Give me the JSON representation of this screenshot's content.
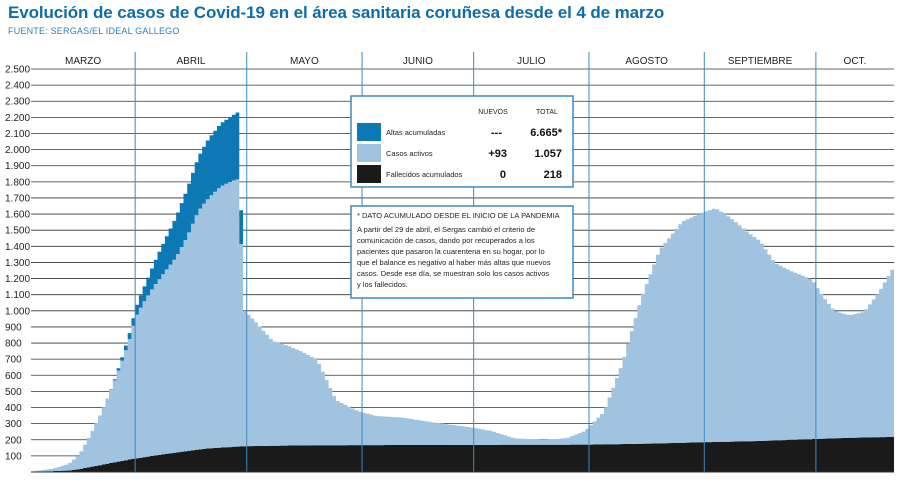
{
  "title": "Evolución de casos de Covid-19 en el área sanitaria coruñesa desde el 4 de marzo",
  "source": "FUENTE: SERGAS/EL IDEAL GALLEGO",
  "colors": {
    "title": "#0e6da8",
    "altas": "#0c79b5",
    "activos": "#a0c3e0",
    "fallecidos": "#1a1a1a",
    "month_line": "#3a8ac2",
    "grid": "#333333"
  },
  "chart_data": {
    "type": "area",
    "stacked": true,
    "ylim": [
      0,
      2500
    ],
    "y_ticks": [
      100,
      200,
      300,
      400,
      500,
      600,
      700,
      800,
      900,
      1000,
      1100,
      1200,
      1300,
      1400,
      1500,
      1600,
      1700,
      1800,
      1900,
      2000,
      2100,
      2200,
      2300,
      2400,
      2500
    ],
    "y_tick_labels": [
      "100",
      "200",
      "300",
      "400",
      "500",
      "600",
      "700",
      "800",
      "900",
      "1.000",
      "1.100",
      "1.200",
      "1.300",
      "1.400",
      "1.500",
      "1.600",
      "1.700",
      "1.800",
      "1.900",
      "2.000",
      "2.100",
      "2.200",
      "2.300",
      "2.400",
      "2.500"
    ],
    "months": [
      "MARZO",
      "ABRIL",
      "MAYO",
      "JUNIO",
      "JULIO",
      "AGOSTO",
      "SEPTIEMBRE",
      "OCT."
    ],
    "series": [
      {
        "name": "Fallecidos acumulados",
        "points": [
          [
            "03-04",
            0
          ],
          [
            "03-15",
            10
          ],
          [
            "03-22",
            40
          ],
          [
            "03-31",
            80
          ],
          [
            "04-10",
            115
          ],
          [
            "04-20",
            145
          ],
          [
            "04-30",
            160
          ],
          [
            "05-15",
            165
          ],
          [
            "06-01",
            167
          ],
          [
            "07-01",
            168
          ],
          [
            "08-01",
            170
          ],
          [
            "08-15",
            175
          ],
          [
            "09-01",
            185
          ],
          [
            "09-15",
            192
          ],
          [
            "10-01",
            205
          ],
          [
            "10-10",
            212
          ],
          [
            "10-22",
            218
          ]
        ]
      },
      {
        "name": "Casos activos",
        "points": [
          [
            "03-04",
            2
          ],
          [
            "03-10",
            15
          ],
          [
            "03-14",
            40
          ],
          [
            "03-17",
            90
          ],
          [
            "03-20",
            200
          ],
          [
            "03-23",
            330
          ],
          [
            "03-26",
            480
          ],
          [
            "03-29",
            650
          ],
          [
            "03-31",
            780
          ],
          [
            "04-01",
            870
          ],
          [
            "04-03",
            950
          ],
          [
            "04-06",
            1050
          ],
          [
            "04-09",
            1130
          ],
          [
            "04-12",
            1210
          ],
          [
            "04-15",
            1330
          ],
          [
            "04-18",
            1480
          ],
          [
            "04-21",
            1560
          ],
          [
            "04-24",
            1620
          ],
          [
            "04-27",
            1650
          ],
          [
            "04-29",
            1660
          ],
          [
            "04-30",
            850
          ],
          [
            "05-03",
            780
          ],
          [
            "05-08",
            650
          ],
          [
            "05-12",
            620
          ],
          [
            "05-16",
            580
          ],
          [
            "05-20",
            530
          ],
          [
            "05-25",
            280
          ],
          [
            "05-31",
            210
          ],
          [
            "06-05",
            180
          ],
          [
            "06-12",
            170
          ],
          [
            "06-20",
            140
          ],
          [
            "06-30",
            110
          ],
          [
            "07-06",
            85
          ],
          [
            "07-12",
            40
          ],
          [
            "07-20",
            30
          ],
          [
            "07-26",
            40
          ],
          [
            "07-31",
            85
          ],
          [
            "08-05",
            200
          ],
          [
            "08-10",
            500
          ],
          [
            "08-15",
            900
          ],
          [
            "08-20",
            1200
          ],
          [
            "08-26",
            1370
          ],
          [
            "08-31",
            1420
          ],
          [
            "09-04",
            1450
          ],
          [
            "09-08",
            1390
          ],
          [
            "09-12",
            1310
          ],
          [
            "09-16",
            1240
          ],
          [
            "09-20",
            1100
          ],
          [
            "09-25",
            1040
          ],
          [
            "09-30",
            990
          ],
          [
            "10-03",
            880
          ],
          [
            "10-06",
            790
          ],
          [
            "10-10",
            760
          ],
          [
            "10-14",
            780
          ],
          [
            "10-18",
            900
          ],
          [
            "10-22",
            1057
          ]
        ]
      },
      {
        "name": "Altas acumuladas",
        "points": [
          [
            "03-04",
            0
          ],
          [
            "03-25",
            0
          ],
          [
            "03-27",
            10
          ],
          [
            "03-31",
            40
          ],
          [
            "04-04",
            100
          ],
          [
            "04-08",
            180
          ],
          [
            "04-12",
            250
          ],
          [
            "04-16",
            310
          ],
          [
            "04-20",
            360
          ],
          [
            "04-24",
            390
          ],
          [
            "04-28",
            410
          ],
          [
            "04-29",
            420
          ],
          [
            "04-30",
            0
          ],
          [
            "10-22",
            0
          ]
        ]
      }
    ],
    "legend": {
      "headers": [
        "NUEVOS",
        "TOTAL"
      ],
      "rows": [
        {
          "label": "Altas acumuladas",
          "nuevos": "---",
          "total": "6.665*"
        },
        {
          "label": "Casos activos",
          "nuevos": "+93",
          "total": "1.057"
        },
        {
          "label": "Fallecidos acumulados",
          "nuevos": "0",
          "total": "218"
        }
      ]
    },
    "note": {
      "heading": "* DATO ACUMULADO DESDE EL INICIO DE LA PANDEMIA",
      "lines": [
        "A partir del 29 de abril, el Sergas cambió el criterio de",
        "comunicación de casos, dando por recuperados a los",
        "pacientes que pasaron la cuarentena en su hogar, por lo",
        "que el balance es negativo al haber más altas que nuevos",
        "casos. Desde ese día, se muestran solo los casos activos",
        "y los fallecidos."
      ]
    }
  }
}
